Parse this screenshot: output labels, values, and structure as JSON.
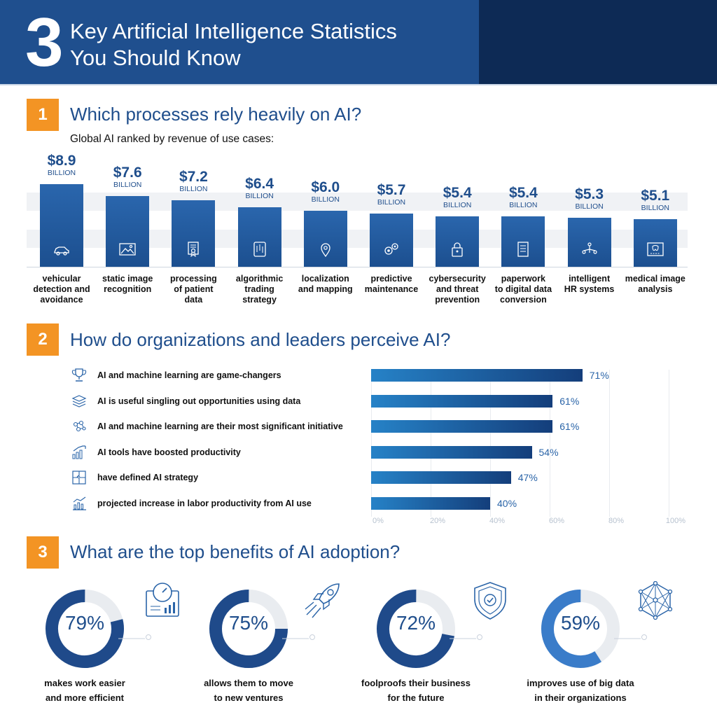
{
  "header": {
    "number": "3",
    "title_line1": "Key Artificial Intelligence Statistics",
    "title_line2": "You Should Know"
  },
  "section1": {
    "badge": "1",
    "title": "Which processes rely heavily on AI?",
    "subtitle": "Global AI ranked by revenue of use cases:"
  },
  "section2": {
    "badge": "2",
    "title": "How do organizations and leaders perceive AI?"
  },
  "section3": {
    "badge": "3",
    "title": "What are the top benefits of AI adoption?"
  },
  "chart_data": [
    {
      "type": "bar",
      "unit_label": "BILLION",
      "categories": [
        [
          "vehicular",
          "detection and",
          "avoidance"
        ],
        [
          "static image",
          "recognition"
        ],
        [
          "processing",
          "of patient",
          "data"
        ],
        [
          "algorithmic",
          "trading",
          "strategy"
        ],
        [
          "localization",
          "and mapping"
        ],
        [
          "predictive",
          "maintenance"
        ],
        [
          "cybersecurity",
          "and threat",
          "prevention"
        ],
        [
          "paperwork",
          "to digital data",
          "conversion"
        ],
        [
          "intelligent",
          "HR systems"
        ],
        [
          "medical image",
          "analysis"
        ]
      ],
      "values": [
        8.9,
        7.6,
        7.2,
        6.4,
        6.0,
        5.7,
        5.4,
        5.4,
        5.3,
        5.1
      ],
      "value_labels": [
        "$8.9",
        "$7.6",
        "$7.2",
        "$6.4",
        "$6.0",
        "$5.7",
        "$5.4",
        "$5.4",
        "$5.3",
        "$5.1"
      ],
      "icons": [
        "car-icon",
        "image-icon",
        "certificate-icon",
        "trading-tablet-icon",
        "map-pin-icon",
        "gears-icon",
        "lock-icon",
        "document-icon",
        "people-network-icon",
        "xray-monitor-icon"
      ]
    },
    {
      "type": "bar",
      "orientation": "horizontal",
      "categories": [
        "AI and machine learning are game-changers",
        "AI is useful singling out opportunities using data",
        "AI and machine learning are their most significant initiative",
        "AI tools have boosted productivity",
        "have defined AI strategy",
        "projected increase in labor productivity from AI use"
      ],
      "values": [
        71,
        61,
        61,
        54,
        47,
        40
      ],
      "value_labels": [
        "71%",
        "61%",
        "61%",
        "54%",
        "47%",
        "40%"
      ],
      "icons": [
        "trophy-icon",
        "data-stack-icon",
        "brain-network-icon",
        "growth-chart-icon",
        "puzzle-icon",
        "analytics-icon"
      ],
      "xlim": [
        0,
        100
      ],
      "ticks": [
        "0%",
        "20%",
        "40%",
        "60%",
        "80%",
        "100%"
      ],
      "grid": true
    },
    {
      "type": "pie",
      "variant": "donut",
      "values": [
        79,
        75,
        72,
        59
      ],
      "value_labels": [
        "79%",
        "75%",
        "72%",
        "59%"
      ],
      "labels": [
        [
          "makes work easier",
          "and more efficient"
        ],
        [
          "allows them to move",
          "to new ventures"
        ],
        [
          "foolproofs their business",
          "for the future"
        ],
        [
          "improves use of big data",
          "in their organizations"
        ]
      ],
      "icons": [
        "speedometer-dashboard-icon",
        "rocket-icon",
        "shield-check-icon",
        "network-icon"
      ],
      "colors": [
        "#1f4a8a",
        "#1f4a8a",
        "#1f4a8a",
        "#3a7cc9"
      ]
    }
  ]
}
